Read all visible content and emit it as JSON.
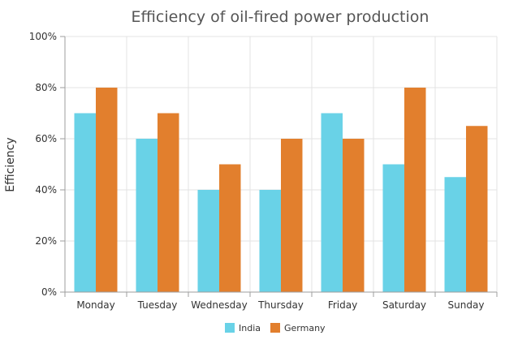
{
  "chart_data": {
    "type": "bar",
    "title": "Efficiency of oil-fired power production",
    "xlabel": "",
    "ylabel": "Efficiency",
    "ylim": [
      0,
      100
    ],
    "yticks": [
      "0%",
      "20%",
      "40%",
      "60%",
      "80%",
      "100%"
    ],
    "ytick_values": [
      0,
      20,
      40,
      60,
      80,
      100
    ],
    "grid": true,
    "legend_position": "bottom",
    "categories": [
      "Monday",
      "Tuesday",
      "Wednesday",
      "Thursday",
      "Friday",
      "Saturday",
      "Sunday"
    ],
    "series": [
      {
        "name": "India",
        "color": "#69d2e7",
        "values": [
          70,
          60,
          40,
          40,
          70,
          50,
          45
        ]
      },
      {
        "name": "Germany",
        "color": "#e27f2d",
        "values": [
          80,
          70,
          50,
          60,
          60,
          80,
          65
        ]
      }
    ]
  }
}
